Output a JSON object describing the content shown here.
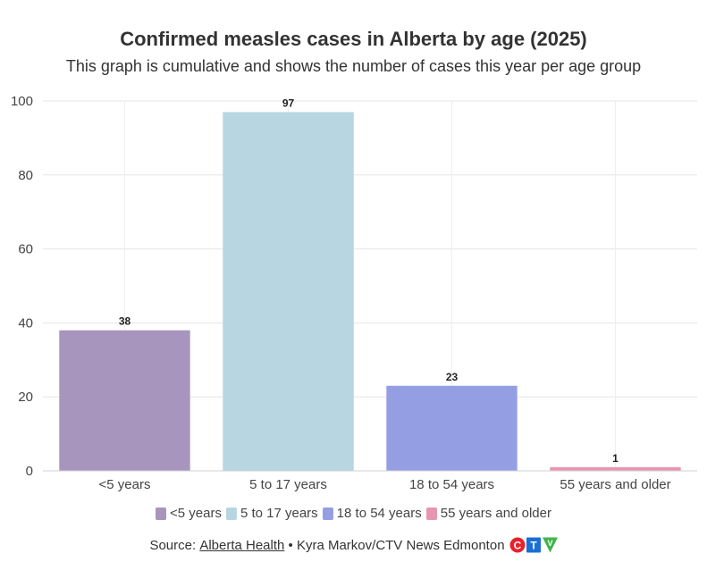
{
  "header": {
    "title": "Confirmed measles cases in Alberta by age (2025)",
    "subtitle": "This graph is cumulative and shows the number of cases this year per age group"
  },
  "chart_data": {
    "type": "bar",
    "title": "Confirmed measles cases in Alberta by age (2025)",
    "subtitle": "This graph is cumulative and shows the number of cases this year per age group",
    "categories": [
      "<5 years",
      "5 to 17 years",
      "18 to 54 years",
      "55 years and older"
    ],
    "values": [
      38,
      97,
      23,
      1
    ],
    "colors": [
      "#a895be",
      "#b7d6e2",
      "#949fe3",
      "#e895b2"
    ],
    "xlabel": "",
    "ylabel": "",
    "ylim": [
      0,
      100
    ],
    "yticks": [
      0,
      20,
      40,
      60,
      80,
      100
    ],
    "grid": true,
    "legend_position": "bottom"
  },
  "legend": {
    "items": [
      {
        "label": "<5 years",
        "color": "#a895be"
      },
      {
        "label": "5 to 17 years",
        "color": "#b7d6e2"
      },
      {
        "label": "18 to 54 years",
        "color": "#949fe3"
      },
      {
        "label": "55 years and older",
        "color": "#e895b2"
      }
    ]
  },
  "source": {
    "prefix": "Source: ",
    "link_text": "Alberta Health",
    "suffix": " • Kyra Markov/CTV News Edmonton",
    "logo_letters": [
      "C",
      "T",
      "V"
    ],
    "logo_colors": [
      "#e8212b",
      "#1a6fd4",
      "#3fb54a"
    ]
  }
}
